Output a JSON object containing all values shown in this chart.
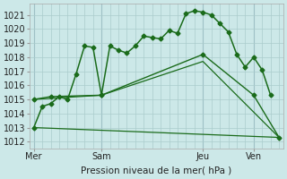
{
  "background_color": "#cce8e8",
  "grid_color": "#aacccc",
  "line_color": "#1a6b1a",
  "title": "Pression niveau de la mer( hPa )",
  "ylim": [
    1011.5,
    1021.8
  ],
  "yticks": [
    1012,
    1013,
    1014,
    1015,
    1016,
    1017,
    1018,
    1019,
    1020,
    1021
  ],
  "xtick_labels": [
    "Mer",
    "Sam",
    "Jeu",
    "Ven"
  ],
  "xtick_pos": [
    0,
    16,
    40,
    52
  ],
  "vline_pos": [
    0,
    16,
    40,
    52
  ],
  "xlim": [
    -1,
    59
  ],
  "series": [
    {
      "x": [
        0,
        2,
        4,
        6,
        8,
        10,
        12,
        14,
        16,
        18,
        20,
        22,
        24,
        26,
        28,
        30,
        32,
        34,
        36,
        38,
        40,
        42,
        44,
        46,
        48,
        50,
        52,
        54,
        56
      ],
      "y": [
        1013.0,
        1014.5,
        1014.7,
        1015.2,
        1015.0,
        1016.8,
        1018.8,
        1018.7,
        1015.3,
        1018.8,
        1018.5,
        1018.3,
        1018.8,
        1019.5,
        1019.4,
        1019.3,
        1019.9,
        1019.7,
        1021.1,
        1021.3,
        1021.2,
        1021.0,
        1020.4,
        1019.8,
        1018.2,
        1017.3,
        1018.0,
        1017.1,
        1015.3
      ],
      "marker": "D",
      "markersize": 2.5,
      "linewidth": 1.1,
      "with_markers": true
    },
    {
      "x": [
        0,
        4,
        16,
        40,
        52,
        58
      ],
      "y": [
        1015.0,
        1015.2,
        1015.3,
        1018.2,
        1015.3,
        1012.3
      ],
      "marker": "D",
      "markersize": 2.5,
      "linewidth": 1.0,
      "with_markers": true
    },
    {
      "x": [
        0,
        16,
        40,
        58
      ],
      "y": [
        1015.0,
        1015.3,
        1017.7,
        1012.3
      ],
      "marker": null,
      "markersize": 0,
      "linewidth": 0.9,
      "with_markers": false
    },
    {
      "x": [
        0,
        58
      ],
      "y": [
        1013.0,
        1012.3
      ],
      "marker": null,
      "markersize": 0,
      "linewidth": 0.9,
      "with_markers": false
    }
  ]
}
